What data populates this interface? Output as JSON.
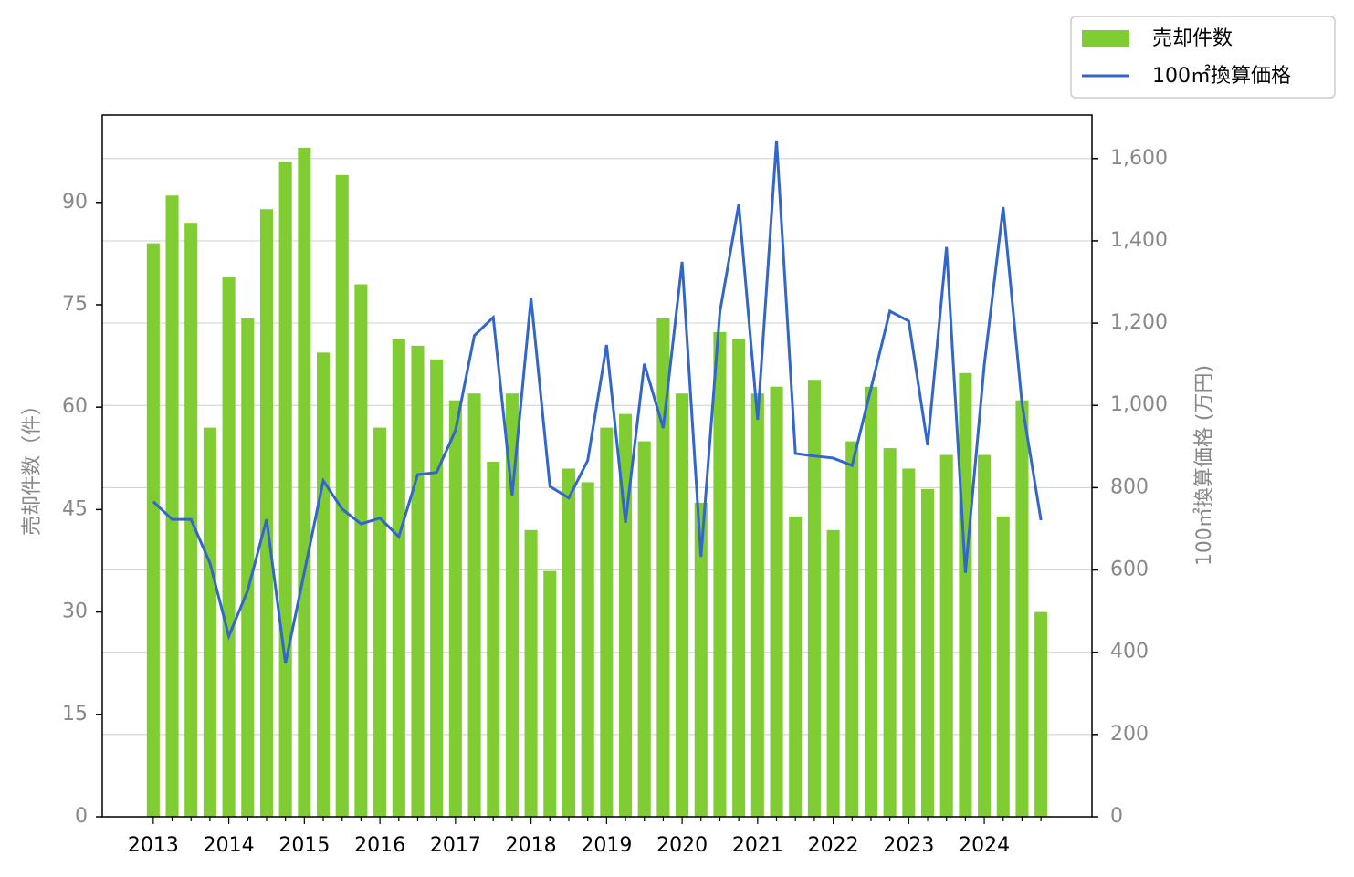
{
  "chart_data": {
    "type": "bar_line",
    "ylabel": "売却件数（件）",
    "y2label": "100㎡換算価格 (万円)",
    "categories": [
      "2013",
      null,
      null,
      null,
      "2014",
      null,
      null,
      null,
      "2015",
      null,
      null,
      null,
      "2016",
      null,
      null,
      null,
      "2017",
      null,
      null,
      null,
      "2018",
      null,
      null,
      null,
      "2019",
      null,
      null,
      null,
      "2020",
      null,
      null,
      null,
      "2021",
      null,
      null,
      null,
      "2022",
      null,
      null,
      null,
      "2023",
      null,
      null,
      null,
      "2024",
      null,
      null,
      null
    ],
    "series": [
      {
        "name": "売却件数",
        "type": "bar",
        "color": "#7fcc33",
        "values": [
          84,
          91,
          87,
          57,
          79,
          73,
          89,
          96,
          98,
          68,
          94,
          78,
          57,
          70,
          69,
          67,
          61,
          62,
          52,
          62,
          42,
          36,
          51,
          49,
          57,
          59,
          55,
          73,
          62,
          46,
          71,
          70,
          62,
          63,
          44,
          64,
          42,
          55,
          63,
          54,
          51,
          48,
          53,
          65,
          53,
          44,
          61,
          30
        ]
      },
      {
        "name": "100㎡換算価格",
        "type": "line",
        "axis": "y2",
        "color": "#3366cc",
        "values": [
          766,
          723,
          723,
          617,
          439,
          550,
          723,
          373,
          595,
          817,
          748,
          712,
          726,
          681,
          832,
          837,
          939,
          1170,
          1214,
          781,
          1261,
          803,
          775,
          866,
          1147,
          715,
          1101,
          945,
          1349,
          632,
          1227,
          1489,
          965,
          1644,
          883,
          877,
          872,
          854,
          1041,
          1229,
          1205,
          903,
          1385,
          593,
          1099,
          1482,
          1003,
          721
        ]
      }
    ],
    "ylim": [
      0,
      102.8
    ],
    "yticks": [
      0,
      15,
      30,
      45,
      60,
      75,
      90
    ],
    "y2lim": [
      0,
      1706
    ],
    "y2ticks": [
      0,
      200,
      400,
      600,
      800,
      {
        "value": 1000,
        "label": "1,000"
      },
      {
        "value": 1200,
        "label": "1,200"
      },
      {
        "value": 1400,
        "label": "1,400"
      },
      {
        "value": 1600,
        "label": "1,600"
      }
    ],
    "grid": "y2",
    "legend": "upper right"
  }
}
